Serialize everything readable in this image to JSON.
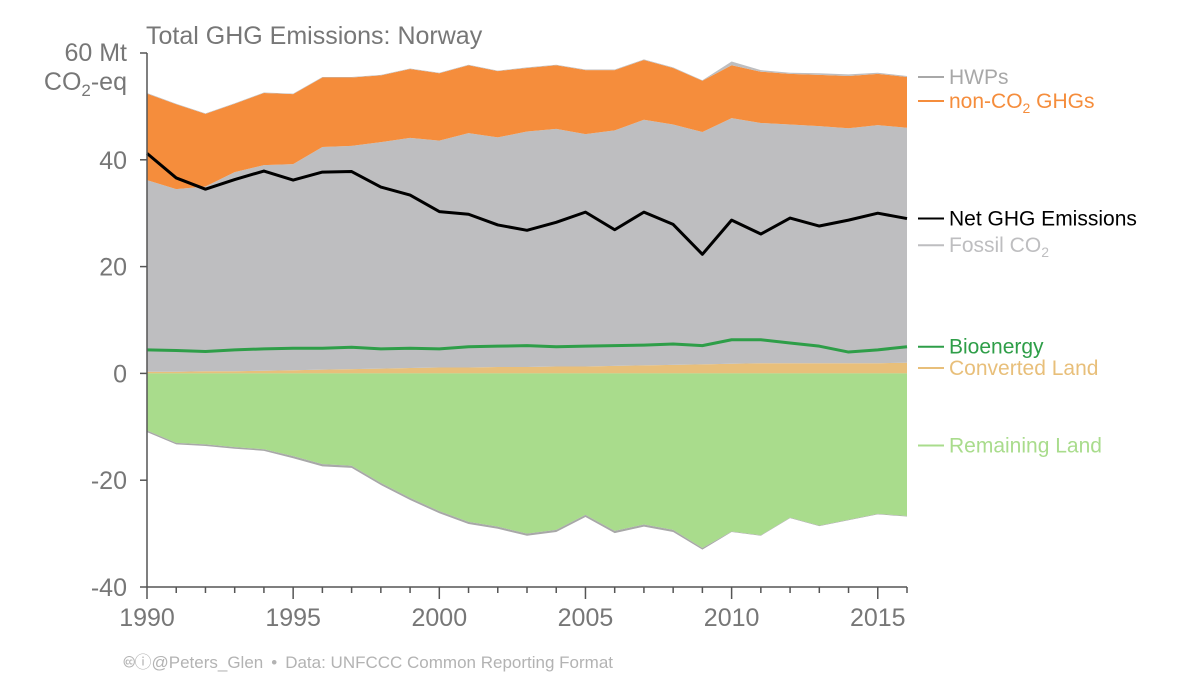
{
  "chart_data": {
    "type": "area",
    "title": "Total GHG Emissions: Norway",
    "ylabel_line1": "60 Mt",
    "ylabel_line2_prefix": "CO",
    "ylabel_line2_sub": "2",
    "ylabel_line2_suffix": "-eq",
    "xlim": [
      1990,
      2016
    ],
    "ylim": [
      -40,
      60
    ],
    "x_ticks": [
      1990,
      1995,
      2000,
      2005,
      2010,
      2015
    ],
    "x_tick_labels": [
      "1990",
      "1995",
      "2000",
      "2005",
      "2010",
      "2015"
    ],
    "y_ticks": [
      -40,
      -20,
      0,
      20,
      40
    ],
    "y_tick_labels": [
      "-40",
      "-20",
      "0",
      "20",
      "40"
    ],
    "x": [
      1990,
      1991,
      1992,
      1993,
      1994,
      1995,
      1996,
      1997,
      1998,
      1999,
      2000,
      2001,
      2002,
      2003,
      2004,
      2005,
      2006,
      2007,
      2008,
      2009,
      2010,
      2011,
      2012,
      2013,
      2014,
      2015,
      2016
    ],
    "stacked_positive": [
      {
        "name": "Converted Land",
        "color": "#E8BF7A",
        "values": [
          0.3,
          0.3,
          0.4,
          0.4,
          0.5,
          0.6,
          0.7,
          0.8,
          0.9,
          1.0,
          1.1,
          1.1,
          1.2,
          1.2,
          1.3,
          1.3,
          1.4,
          1.5,
          1.6,
          1.7,
          1.8,
          1.9,
          1.9,
          1.9,
          1.9,
          1.9,
          2.0
        ]
      },
      {
        "name": "Fossil CO2",
        "color": "#BEBEC0",
        "values": [
          35.9,
          34.2,
          34.6,
          37.3,
          38.5,
          38.6,
          41.7,
          41.8,
          42.4,
          43.1,
          42.5,
          43.9,
          43.0,
          44.1,
          44.5,
          43.5,
          44.1,
          46.0,
          45.0,
          43.5,
          46.0,
          45.0,
          44.7,
          44.4,
          44.0,
          44.6,
          44.0
        ]
      },
      {
        "name": "non-CO2 GHGs",
        "color": "#F58D3C",
        "values": [
          16.2,
          15.9,
          13.6,
          12.8,
          13.5,
          13.1,
          13.0,
          12.8,
          12.5,
          12.9,
          12.6,
          12.7,
          12.4,
          11.9,
          11.9,
          12.0,
          11.3,
          11.2,
          10.6,
          9.6,
          9.9,
          9.6,
          9.5,
          9.6,
          9.8,
          9.6,
          9.5
        ]
      },
      {
        "name": "HWPs",
        "color": "#BEBEC0",
        "values": [
          0.1,
          0.1,
          0.1,
          0.1,
          0.1,
          0.1,
          0.1,
          0.1,
          0.1,
          0.1,
          0.1,
          0.1,
          0.1,
          0.1,
          0.1,
          0.1,
          0.1,
          0.1,
          0.1,
          0.1,
          0.7,
          0.3,
          0.2,
          0.3,
          0.3,
          0.2,
          0.2
        ]
      }
    ],
    "stacked_negative": [
      {
        "name": "Remaining Land",
        "color": "#A9DC8C",
        "values": [
          -10.7,
          -13.0,
          -13.3,
          -13.8,
          -14.2,
          -15.5,
          -17.0,
          -17.3,
          -20.5,
          -23.3,
          -25.8,
          -27.8,
          -28.7,
          -30.0,
          -29.3,
          -26.5,
          -29.5,
          -28.3,
          -29.3,
          -32.7,
          -29.6,
          -30.3,
          -27.0,
          -28.5,
          -27.4,
          -26.3,
          -26.7
        ]
      },
      {
        "name": "HWPs",
        "color": "#A8A8A8",
        "values": [
          -0.3,
          -0.3,
          -0.3,
          -0.3,
          -0.3,
          -0.4,
          -0.4,
          -0.4,
          -0.4,
          -0.4,
          -0.4,
          -0.4,
          -0.4,
          -0.4,
          -0.4,
          -0.4,
          -0.4,
          -0.4,
          -0.4,
          -0.3,
          -0.1,
          -0.1,
          -0.1,
          -0.1,
          -0.1,
          -0.1,
          -0.1
        ]
      }
    ],
    "lines": [
      {
        "name": "Net GHG Emissions",
        "color": "#000000",
        "values": [
          41.2,
          36.6,
          34.5,
          36.3,
          37.9,
          36.2,
          37.7,
          37.8,
          34.9,
          33.4,
          30.3,
          29.8,
          27.8,
          26.8,
          28.3,
          30.2,
          26.9,
          30.2,
          27.9,
          22.3,
          28.7,
          26.1,
          29.1,
          27.6,
          28.7,
          30.0,
          29.0
        ]
      },
      {
        "name": "Bioenergy",
        "color": "#2E9E48",
        "values": [
          4.4,
          4.3,
          4.1,
          4.4,
          4.6,
          4.7,
          4.7,
          4.9,
          4.6,
          4.7,
          4.6,
          5.0,
          5.1,
          5.2,
          5.0,
          5.1,
          5.2,
          5.3,
          5.5,
          5.2,
          6.3,
          6.3,
          5.7,
          5.1,
          4.0,
          4.4,
          5.0
        ]
      }
    ],
    "legend": [
      {
        "key": "hwps",
        "label": "HWPs",
        "color": "#A8A8A8",
        "anchor_y": 55.5
      },
      {
        "key": "nonco2",
        "label_prefix": "non-CO",
        "label_sub": "2",
        "label_suffix": " GHGs",
        "color": "#F58D3C",
        "anchor_y": 51.0
      },
      {
        "key": "net",
        "label": "Net GHG Emissions",
        "color": "#000000",
        "anchor_y": 29.0
      },
      {
        "key": "fossil",
        "label_prefix": "Fossil CO",
        "label_sub": "2",
        "label_suffix": "",
        "color": "#BEBEC0",
        "anchor_y": 24.0
      },
      {
        "key": "bio",
        "label": "Bioenergy",
        "color": "#2E9E48",
        "anchor_y": 5.0
      },
      {
        "key": "converted",
        "label": "Converted Land",
        "color": "#E8BF7A",
        "anchor_y": 1.0
      },
      {
        "key": "remaining",
        "label": "Remaining Land",
        "color": "#A9DC8C",
        "anchor_y": -13.5
      }
    ]
  },
  "footer": {
    "handle": "@Peters_Glen",
    "separator": "•",
    "source": "Data: UNFCCC Common Reporting Format"
  }
}
